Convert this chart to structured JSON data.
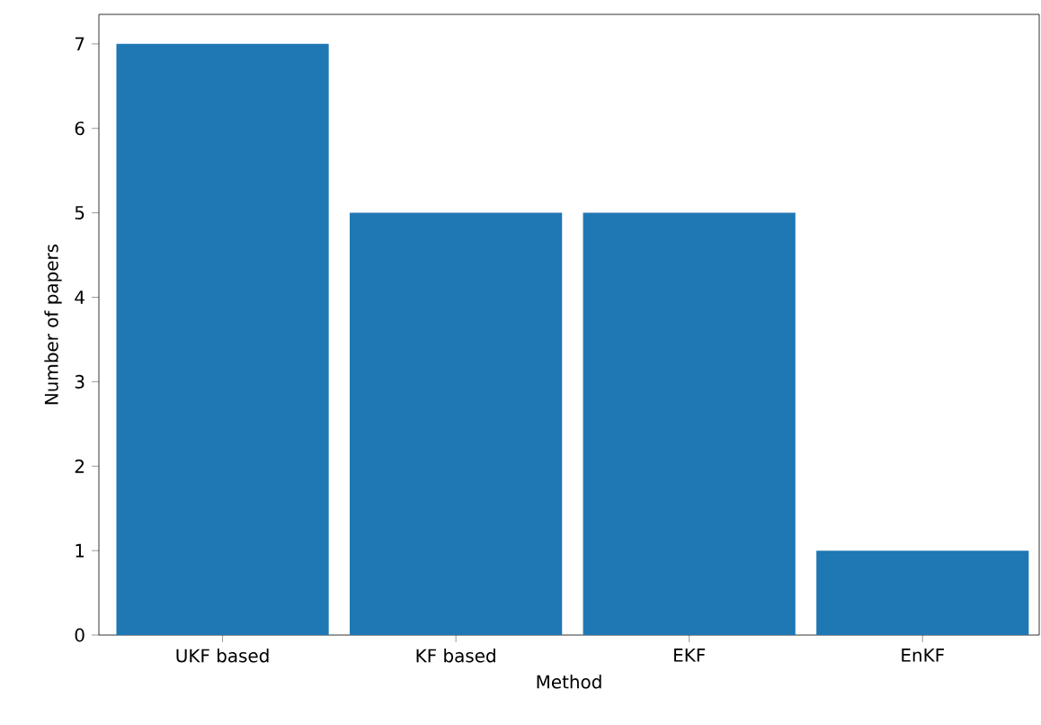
{
  "chart_data": {
    "type": "bar",
    "xlabel": "Method",
    "ylabel": "Number of papers",
    "categories": [
      "UKF based",
      "KF based",
      "EKF",
      "EnKF"
    ],
    "values": [
      7,
      5,
      5,
      1
    ],
    "color": "#1f77b4",
    "ylim": [
      0,
      7.35
    ],
    "yticks": [
      0,
      1,
      2,
      3,
      4,
      5,
      6,
      7
    ],
    "grid": false
  }
}
